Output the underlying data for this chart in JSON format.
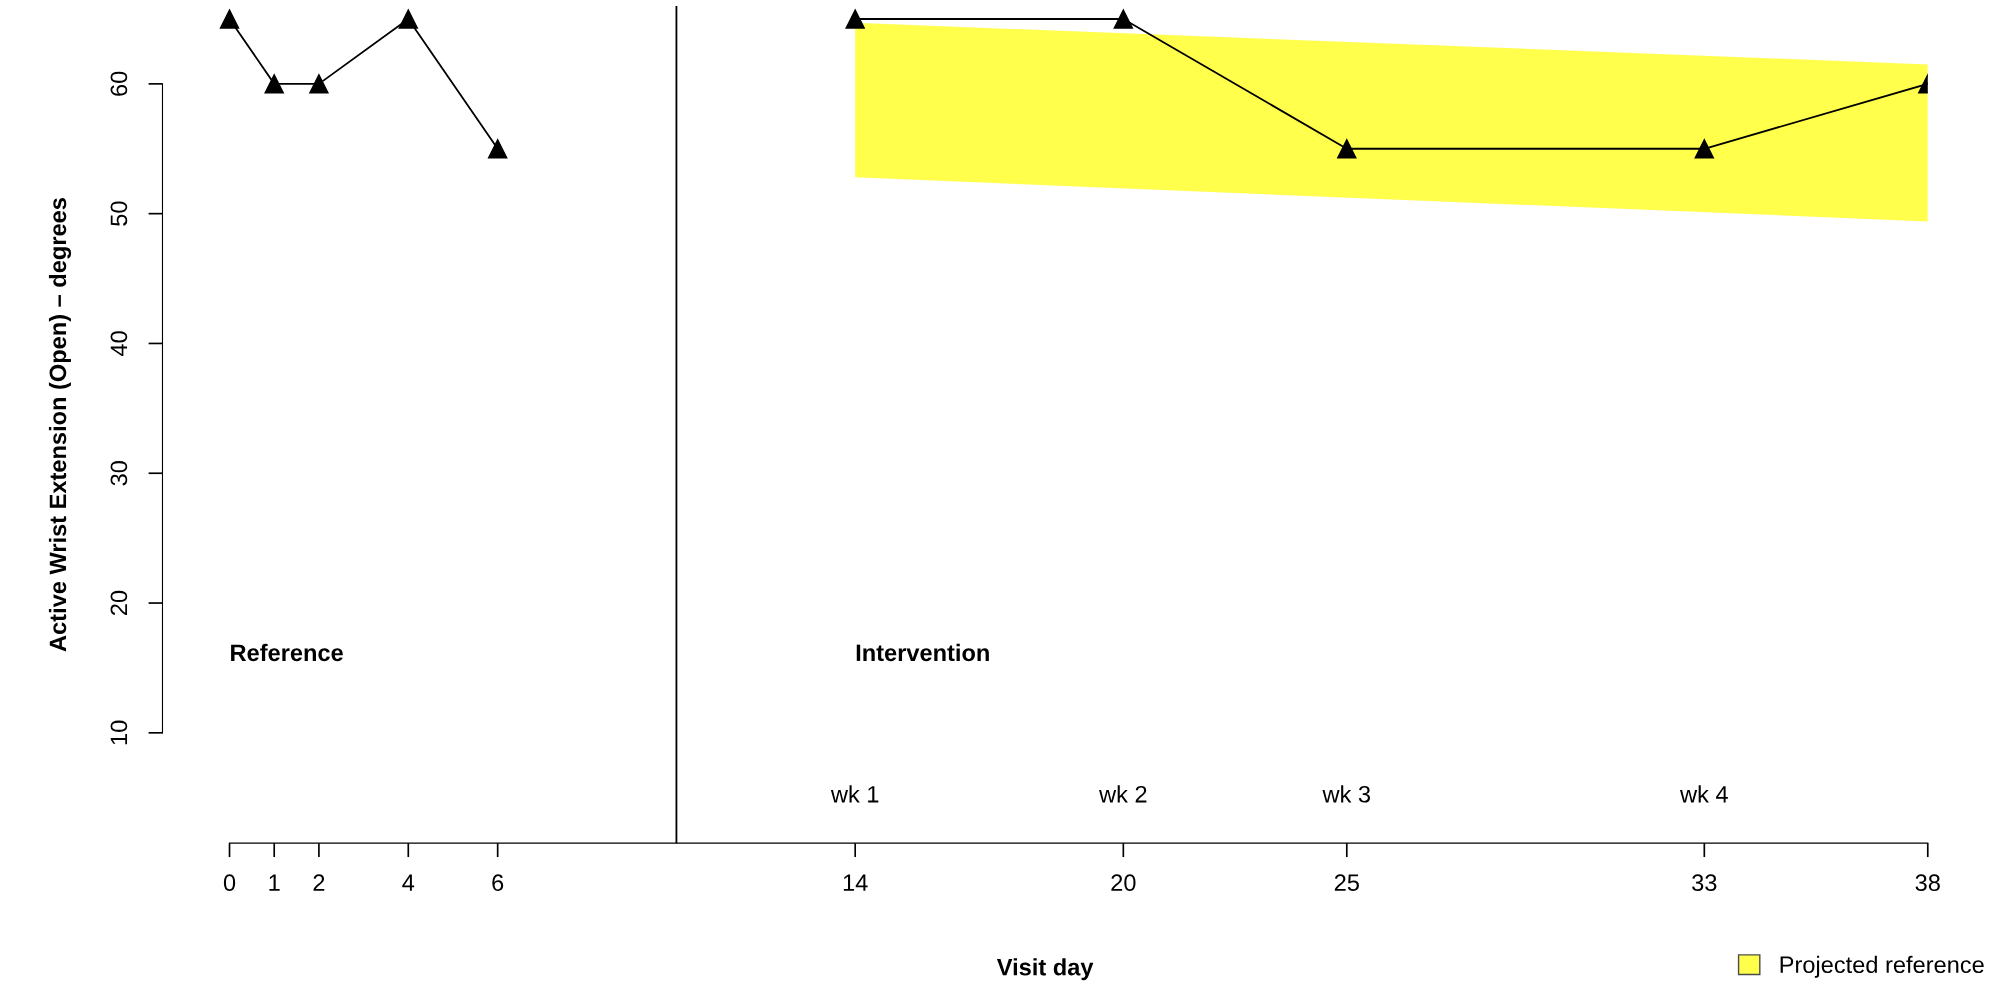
{
  "chart_data": {
    "type": "line",
    "xlabel": "Visit day",
    "ylabel": "Active Wrist Extension (Open) – degrees",
    "xlim": [
      -1.5,
      38
    ],
    "ylim": [
      1.5,
      66
    ],
    "xticks": [
      0,
      1,
      2,
      4,
      6,
      14,
      20,
      25,
      33,
      38
    ],
    "yticks": [
      10,
      20,
      30,
      40,
      50,
      60
    ],
    "line_style": "solid",
    "grid": false,
    "legend": "bottom right",
    "series": [
      {
        "x": [
          0,
          1,
          2,
          4,
          6
        ],
        "values": [
          65,
          60,
          60,
          65,
          55
        ],
        "color": "#000000",
        "marker": "triangle"
      },
      {
        "x": [
          14,
          20,
          25,
          33,
          38
        ],
        "values": [
          65,
          65,
          55,
          55,
          60
        ],
        "color": "#000000",
        "marker": "triangle"
      },
      {
        "name": "Projected reference",
        "type": "area",
        "x": [
          14,
          38
        ],
        "values": [
          null,
          null
        ],
        "lower": [
          52.8,
          49.4
        ],
        "upper": [
          64.7,
          61.5
        ],
        "color": "#ffff00"
      }
    ],
    "ref_lines": [
      {
        "axis": "x",
        "value": 10,
        "color": "#000000"
      }
    ],
    "annotations": [
      "Reference",
      "Intervention",
      "wk 1",
      "wk 2",
      "wk 3",
      "wk 4"
    ]
  }
}
